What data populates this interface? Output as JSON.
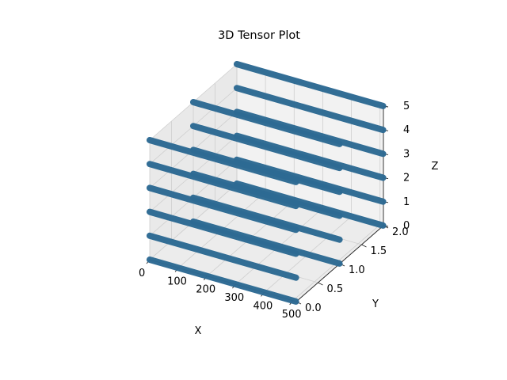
{
  "chart_data": {
    "type": "scatter",
    "projection": "3d",
    "title": "3D Tensor Plot",
    "xlabel": "X",
    "ylabel": "Y",
    "zlabel": "Z",
    "xticks": [
      "0",
      "100",
      "200",
      "300",
      "400",
      "500"
    ],
    "yticks": [
      "0.0",
      "0.5",
      "1.0",
      "1.5",
      "2.0"
    ],
    "zticks": [
      "0",
      "1",
      "2",
      "3",
      "4",
      "5"
    ],
    "xlim": [
      0,
      512
    ],
    "ylim": [
      0,
      2
    ],
    "zlim": [
      0,
      5
    ],
    "grid": true,
    "marker_color": "#2d6a93",
    "series": [
      {
        "y": 0,
        "z": 0,
        "x_range": [
          0,
          511
        ]
      },
      {
        "y": 0,
        "z": 1,
        "x_range": [
          0,
          511
        ]
      },
      {
        "y": 0,
        "z": 2,
        "x_range": [
          0,
          511
        ]
      },
      {
        "y": 0,
        "z": 3,
        "x_range": [
          0,
          511
        ]
      },
      {
        "y": 0,
        "z": 4,
        "x_range": [
          0,
          511
        ]
      },
      {
        "y": 0,
        "z": 5,
        "x_range": [
          0,
          511
        ]
      },
      {
        "y": 1,
        "z": 0,
        "x_range": [
          0,
          511
        ]
      },
      {
        "y": 1,
        "z": 1,
        "x_range": [
          0,
          511
        ]
      },
      {
        "y": 1,
        "z": 2,
        "x_range": [
          0,
          511
        ]
      },
      {
        "y": 1,
        "z": 3,
        "x_range": [
          0,
          511
        ]
      },
      {
        "y": 1,
        "z": 4,
        "x_range": [
          0,
          511
        ]
      },
      {
        "y": 1,
        "z": 5,
        "x_range": [
          0,
          511
        ]
      },
      {
        "y": 2,
        "z": 0,
        "x_range": [
          0,
          511
        ]
      },
      {
        "y": 2,
        "z": 1,
        "x_range": [
          0,
          511
        ]
      },
      {
        "y": 2,
        "z": 2,
        "x_range": [
          0,
          511
        ]
      },
      {
        "y": 2,
        "z": 3,
        "x_range": [
          0,
          511
        ]
      },
      {
        "y": 2,
        "z": 4,
        "x_range": [
          0,
          511
        ]
      },
      {
        "y": 2,
        "z": 5,
        "x_range": [
          0,
          511
        ]
      }
    ]
  }
}
